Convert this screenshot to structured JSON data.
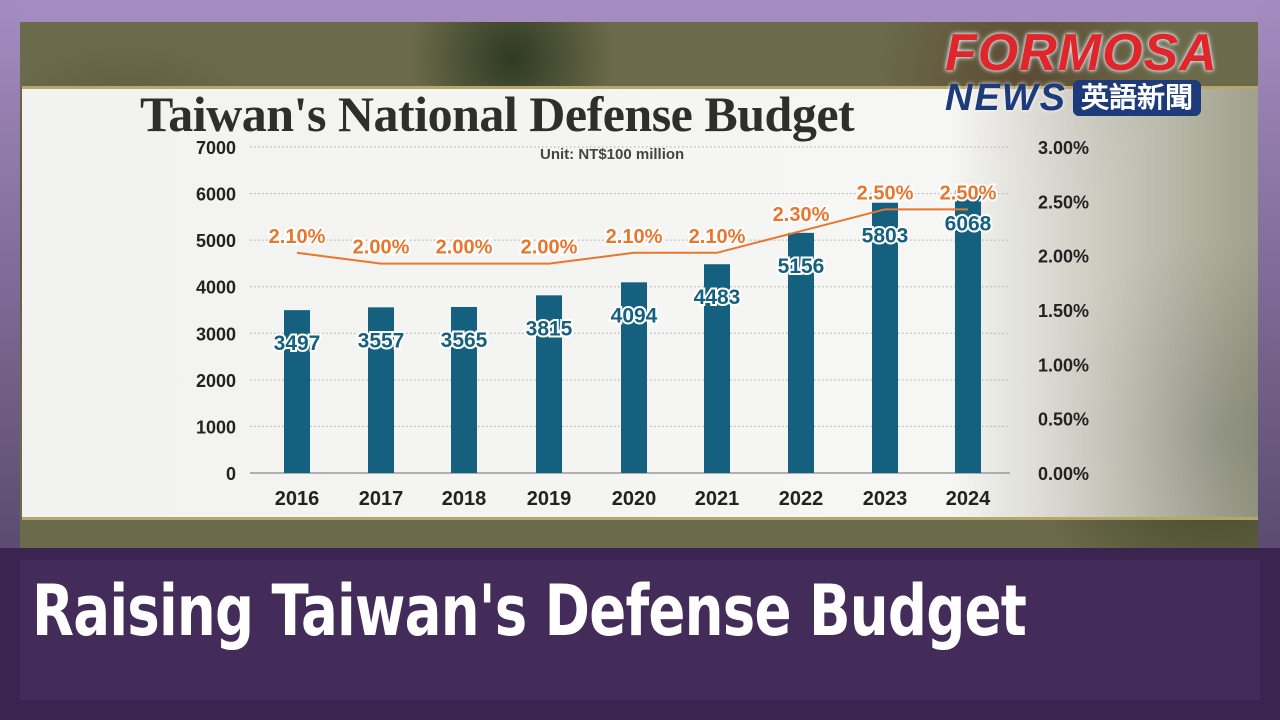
{
  "logo": {
    "brand": "FORMOSA",
    "sub": "NEWS",
    "zh": "英語新聞"
  },
  "headline": "Raising Taiwan's Defense Budget",
  "colors": {
    "bar": "#16607f",
    "line": "#e8762d",
    "frame": "#a48cc0",
    "banner": "#3b2550"
  },
  "chart_data": {
    "type": "bar",
    "title": "Taiwan's National Defense Budget",
    "subtitle": "Unit: NT$100 million",
    "categories": [
      "2016",
      "2017",
      "2018",
      "2019",
      "2020",
      "2021",
      "2022",
      "2023",
      "2024"
    ],
    "series": [
      {
        "type": "bar",
        "axis": "left",
        "values": [
          3497,
          3557,
          3565,
          3815,
          4094,
          4483,
          5156,
          5803,
          6068
        ],
        "labels": [
          "3497",
          "3557",
          "3565",
          "3815",
          "4094",
          "4483",
          "5156",
          "5803",
          "6068"
        ]
      },
      {
        "type": "line",
        "axis": "right",
        "values": [
          2.1,
          2.0,
          2.0,
          2.0,
          2.1,
          2.1,
          2.3,
          2.5,
          2.5
        ],
        "labels": [
          "2.10%",
          "2.00%",
          "2.00%",
          "2.00%",
          "2.10%",
          "2.10%",
          "2.30%",
          "2.50%",
          "2.50%"
        ]
      }
    ],
    "ylim": [
      0,
      7000
    ],
    "yticks": [
      "0",
      "1000",
      "2000",
      "3000",
      "4000",
      "5000",
      "6000",
      "7000"
    ],
    "y2lim": [
      0,
      3
    ],
    "y2ticks": [
      "0.00%",
      "0.50%",
      "1.00%",
      "1.50%",
      "2.00%",
      "2.50%",
      "3.00%"
    ],
    "grid": true
  }
}
